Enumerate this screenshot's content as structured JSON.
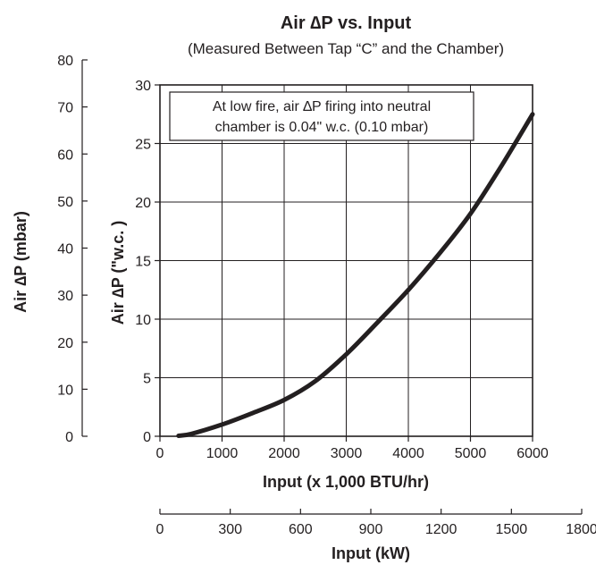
{
  "chart_data": {
    "type": "line",
    "title": "Air ∆P vs. Input",
    "subtitle": "(Measured Between Tap “C” and the Chamber)",
    "xlabel": "Input (x 1,000 BTU/hr)",
    "xlim": [
      0,
      6000
    ],
    "xticks": [
      "0",
      "1000",
      "2000",
      "3000",
      "4000",
      "5000",
      "6000"
    ],
    "ylabel": "Air ∆P (\"w.c. )",
    "ylim": [
      0,
      30
    ],
    "yticks": [
      "0",
      "5",
      "10",
      "15",
      "20",
      "25",
      "30"
    ],
    "secondary_xlabel": "Input (kW)",
    "secondary_xlim": [
      0,
      1800
    ],
    "secondary_xticks": [
      "0",
      "300",
      "600",
      "900",
      "1200",
      "1500",
      "1800"
    ],
    "secondary_ylabel": "Air ∆P (mbar)",
    "secondary_ylim": [
      0,
      80
    ],
    "secondary_yticks": [
      "0",
      "10",
      "20",
      "30",
      "40",
      "50",
      "60",
      "70",
      "80"
    ],
    "grid": true,
    "annotation": {
      "lines": [
        "At low fire, air ∆P firing into neutral",
        "chamber is 0.04\" w.c. (0.10 mbar)"
      ],
      "position": "top-left"
    },
    "series": [
      {
        "x": [
          300,
          500,
          1000,
          1500,
          2000,
          2500,
          3000,
          3500,
          4000,
          4500,
          5000,
          5500,
          6000
        ],
        "y": [
          0.04,
          0.2,
          1.0,
          2.0,
          3.1,
          4.7,
          7.0,
          9.7,
          12.5,
          15.6,
          19.0,
          23.1,
          27.5
        ]
      }
    ]
  }
}
